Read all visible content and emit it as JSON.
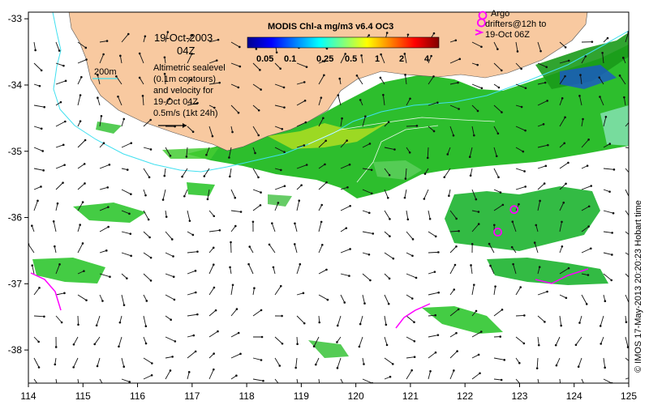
{
  "title": {
    "date": "19-Oct-2003",
    "time": "04Z"
  },
  "colorbar": {
    "title": "MODIS Chl-a mg/m3 v6.4 OC3",
    "ticks": [
      "0.05",
      "0.1",
      "0.25",
      "0.5",
      "1",
      "2",
      "4"
    ]
  },
  "legend": {
    "isobath_label": "200m",
    "sealevel_note": [
      "Altimetric sealevel",
      "(0.1m contours)",
      "and velocity for",
      "19-Oct 04Z",
      "0.5m/s (1kt 24h)"
    ],
    "argo_note": [
      "Argo",
      "drifters@12h to",
      "19-Oct 06Z"
    ]
  },
  "axes": {
    "x_ticks": [
      "114",
      "115",
      "116",
      "117",
      "118",
      "119",
      "120",
      "121",
      "122",
      "123",
      "124",
      "125"
    ],
    "y_ticks": [
      "-33",
      "-34",
      "-35",
      "-36",
      "-37",
      "-38"
    ],
    "x_range": [
      114,
      125
    ],
    "y_range": [
      -38.5,
      -32.9
    ]
  },
  "credit": "© IMOS 17-May-2013 20:20:23 Hobart time",
  "colors": {
    "land": "#f8c9a0",
    "isobath": "#40e0f0",
    "argo": "#ff00ff",
    "chl_high": "#20c020",
    "chl_low": "#9fe8c0"
  },
  "argo_floats": [
    {
      "lon": 122.3,
      "lat": -33.06
    },
    {
      "lon": 122.9,
      "lat": -35.88
    },
    {
      "lon": 122.6,
      "lat": -36.22
    }
  ]
}
